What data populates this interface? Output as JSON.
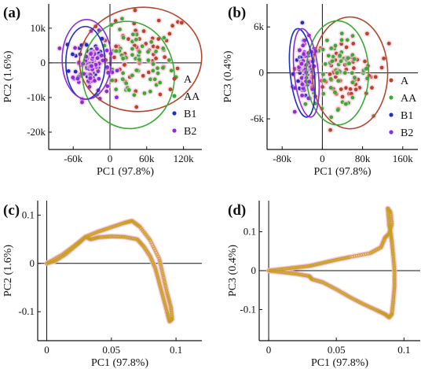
{
  "colors": {
    "A": "#b5462d",
    "AA": "#3aaa35",
    "B1": "#1f2fc0",
    "B2": "#8a2be2",
    "loading": "#c8a020",
    "loading_halo": "#f4b8c8",
    "axis": "#111111"
  },
  "chart_data": [
    {
      "panel": "(a)",
      "type": "scatter",
      "xlabel": "PC1 (97.8%)",
      "ylabel": "PC2 (1.6%)",
      "xlim": [
        -100000,
        150000
      ],
      "ylim": [
        -25000,
        17000
      ],
      "xticks": [
        -60000,
        0,
        60000,
        120000
      ],
      "xtick_labels": [
        "-60k",
        "0",
        "60k",
        "120k"
      ],
      "yticks": [
        -20000,
        -10000,
        0,
        10000
      ],
      "ytick_labels": [
        "-20k",
        "-10k",
        "0",
        "10k"
      ],
      "legend": {
        "position": "right",
        "entries": [
          "A",
          "AA",
          "B1",
          "B2"
        ]
      },
      "series": [
        {
          "name": "A",
          "cx": 55000,
          "cy": 3000,
          "sx": 38000,
          "sy": 6000,
          "n": 55,
          "ellipse": {
            "cx": 50000,
            "cy": 1000,
            "rx": 100000,
            "ry": 15000,
            "angle": -8
          }
        },
        {
          "name": "AA",
          "cx": 40000,
          "cy": -1000,
          "sx": 32000,
          "sy": 5500,
          "n": 60,
          "ellipse": {
            "cx": 30000,
            "cy": -3500,
            "rx": 75000,
            "ry": 15500,
            "angle": -6
          }
        },
        {
          "name": "B1",
          "cx": -35000,
          "cy": 1000,
          "sx": 15000,
          "sy": 4000,
          "n": 55,
          "ellipse": {
            "cx": -40000,
            "cy": 0,
            "rx": 32000,
            "ry": 10500,
            "angle": 0
          }
        },
        {
          "name": "B2",
          "cx": -30000,
          "cy": -1000,
          "sx": 15000,
          "sy": 4500,
          "n": 55,
          "ellipse": {
            "cx": -38000,
            "cy": 1000,
            "rx": 40000,
            "ry": 11500,
            "angle": 0
          }
        }
      ]
    },
    {
      "panel": "(b)",
      "type": "scatter",
      "xlabel": "PC1 (97.8%)",
      "ylabel": "PC3 (0.4%)",
      "xlim": [
        -110000,
        190000
      ],
      "ylim": [
        -10000,
        9000
      ],
      "xticks": [
        -80000,
        0,
        80000,
        160000
      ],
      "xtick_labels": [
        "-80k",
        "0",
        "80k",
        "160k"
      ],
      "yticks": [
        -6000,
        0,
        6000
      ],
      "ytick_labels": [
        "-6k",
        "0",
        "6k"
      ],
      "legend": {
        "position": "right",
        "entries": [
          "A",
          "AA",
          "B1",
          "B2"
        ]
      },
      "series": [
        {
          "name": "A",
          "cx": 55000,
          "cy": 0,
          "sx": 38000,
          "sy": 2200,
          "n": 55,
          "ellipse": {
            "cx": 55000,
            "cy": 0,
            "rx": 75000,
            "ry": 7300,
            "angle": 0
          }
        },
        {
          "name": "AA",
          "cx": 30000,
          "cy": 0,
          "sx": 32000,
          "sy": 2200,
          "n": 60,
          "ellipse": {
            "cx": 30000,
            "cy": 0,
            "rx": 62000,
            "ry": 6800,
            "angle": 0
          }
        },
        {
          "name": "B1",
          "cx": -35000,
          "cy": 0,
          "sx": 11000,
          "sy": 2000,
          "n": 55,
          "ellipse": {
            "cx": -40000,
            "cy": 0,
            "rx": 24000,
            "ry": 5800,
            "angle": -6
          }
        },
        {
          "name": "B2",
          "cx": -30000,
          "cy": 0,
          "sx": 11000,
          "sy": 2000,
          "n": 55,
          "ellipse": {
            "cx": -32000,
            "cy": 0,
            "rx": 24000,
            "ry": 5800,
            "angle": -6
          }
        }
      ]
    },
    {
      "panel": "(c)",
      "type": "line",
      "xlabel": "PC1 (97.8%)",
      "ylabel": "PC2 (1.6%)",
      "xlim": [
        -0.007,
        0.12
      ],
      "ylim": [
        -0.16,
        0.13
      ],
      "xticks": [
        0,
        0.05,
        0.1
      ],
      "xtick_labels": [
        "0",
        "0.05",
        "0.1"
      ],
      "yticks": [
        -0.1,
        0,
        0.1
      ],
      "ytick_labels": [
        "-0.1",
        "0",
        "0.1"
      ],
      "loop": [
        [
          0,
          0
        ],
        [
          0.012,
          0.018
        ],
        [
          0.022,
          0.038
        ],
        [
          0.03,
          0.055
        ],
        [
          0.04,
          0.066
        ],
        [
          0.05,
          0.075
        ],
        [
          0.06,
          0.084
        ],
        [
          0.066,
          0.088
        ],
        [
          0.072,
          0.076
        ],
        [
          0.08,
          0.048
        ],
        [
          0.087,
          0.01
        ],
        [
          0.09,
          -0.025
        ],
        [
          0.093,
          -0.06
        ],
        [
          0.096,
          -0.09
        ],
        [
          0.097,
          -0.115
        ],
        [
          0.095,
          -0.12
        ],
        [
          0.093,
          -0.1
        ],
        [
          0.09,
          -0.07
        ],
        [
          0.087,
          -0.04
        ],
        [
          0.084,
          -0.01
        ],
        [
          0.08,
          0.015
        ],
        [
          0.075,
          0.035
        ],
        [
          0.07,
          0.05
        ],
        [
          0.06,
          0.055
        ],
        [
          0.05,
          0.056
        ],
        [
          0.04,
          0.054
        ],
        [
          0.034,
          0.05
        ],
        [
          0.03,
          0.055
        ],
        [
          0.024,
          0.04
        ],
        [
          0.015,
          0.02
        ],
        [
          0.007,
          0.006
        ],
        [
          0,
          0
        ]
      ]
    },
    {
      "panel": "(d)",
      "type": "line",
      "xlabel": "PC1 (97.8%)",
      "ylabel": "PC3 (0.4%)",
      "xlim": [
        -0.007,
        0.112
      ],
      "ylim": [
        -0.18,
        0.18
      ],
      "xticks": [
        0,
        0.05,
        0.1
      ],
      "xtick_labels": [
        "0",
        "0.05",
        "0.1"
      ],
      "yticks": [
        -0.1,
        0,
        0.1
      ],
      "ytick_labels": [
        "-0.1",
        "0",
        "0.1"
      ],
      "loop": [
        [
          0,
          0
        ],
        [
          0.01,
          -0.004
        ],
        [
          0.02,
          -0.008
        ],
        [
          0.03,
          -0.014
        ],
        [
          0.032,
          -0.022
        ],
        [
          0.04,
          -0.03
        ],
        [
          0.05,
          -0.048
        ],
        [
          0.06,
          -0.068
        ],
        [
          0.07,
          -0.086
        ],
        [
          0.08,
          -0.102
        ],
        [
          0.086,
          -0.112
        ],
        [
          0.089,
          -0.12
        ],
        [
          0.091,
          -0.112
        ],
        [
          0.092,
          -0.08
        ],
        [
          0.093,
          -0.04
        ],
        [
          0.093,
          0
        ],
        [
          0.092,
          0.04
        ],
        [
          0.091,
          0.075
        ],
        [
          0.09,
          0.1
        ],
        [
          0.089,
          0.12
        ],
        [
          0.088,
          0.16
        ],
        [
          0.09,
          0.15
        ],
        [
          0.091,
          0.12
        ],
        [
          0.089,
          0.095
        ],
        [
          0.086,
          0.085
        ],
        [
          0.083,
          0.06
        ],
        [
          0.075,
          0.045
        ],
        [
          0.06,
          0.035
        ],
        [
          0.05,
          0.028
        ],
        [
          0.04,
          0.02
        ],
        [
          0.03,
          0.012
        ],
        [
          0.02,
          0.008
        ],
        [
          0.01,
          0.004
        ],
        [
          0,
          0
        ]
      ]
    }
  ]
}
